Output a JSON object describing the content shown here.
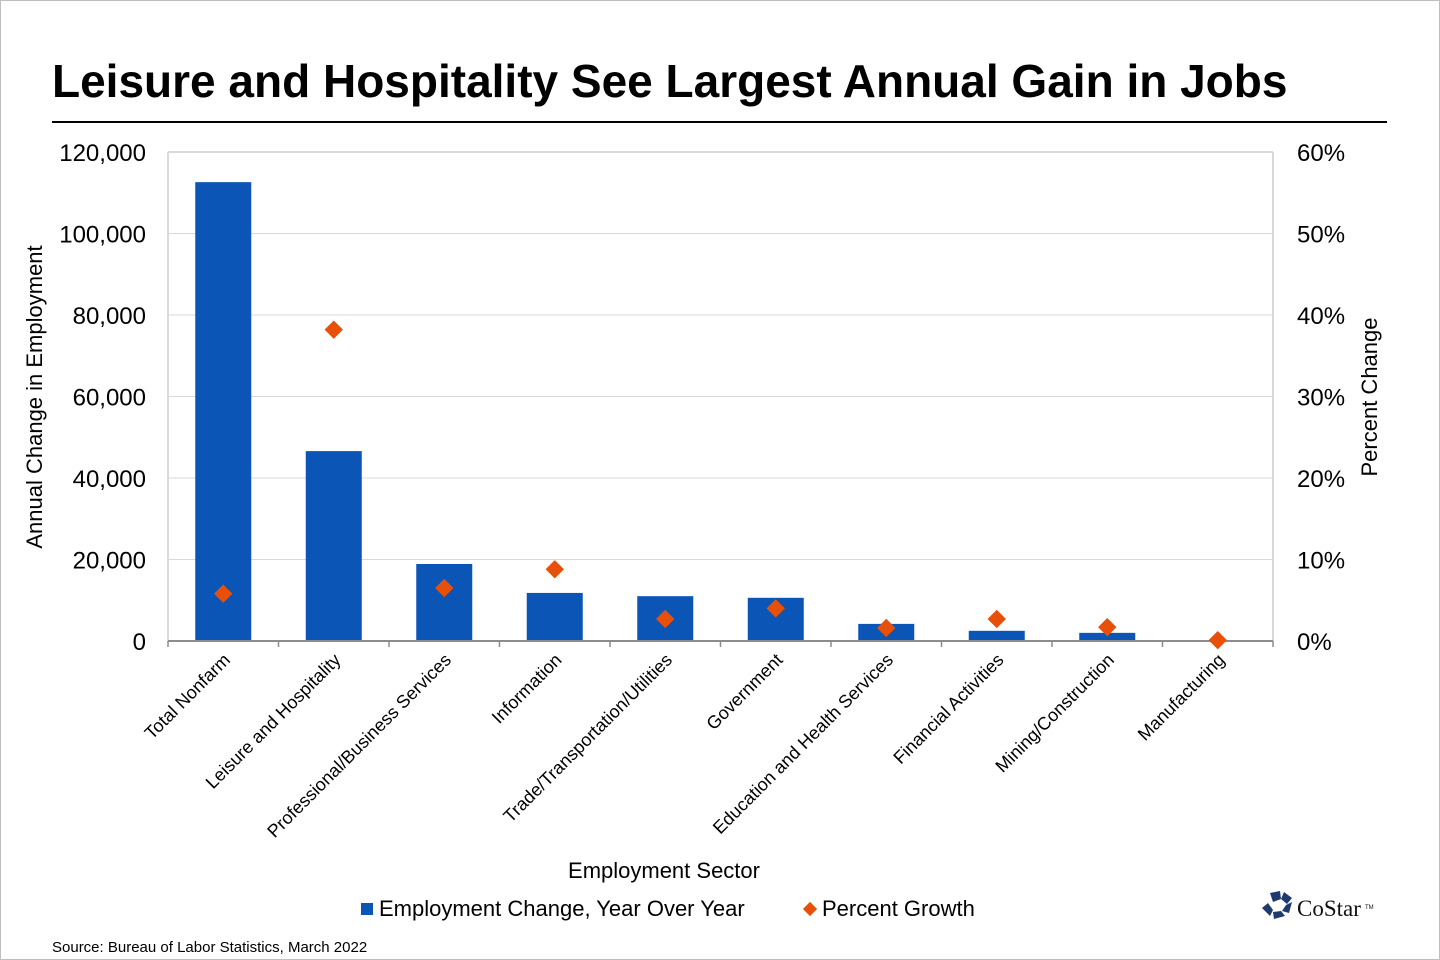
{
  "chart_data": {
    "type": "bar",
    "title": "Leisure and Hospitality See Largest Annual Gain in Jobs",
    "xlabel": "Employment Sector",
    "ylabel": "Annual Change in Employment",
    "y2label": "Percent Change",
    "ylim": [
      0,
      120000
    ],
    "y2lim": [
      0,
      60
    ],
    "yticks": [
      "0",
      "20,000",
      "40,000",
      "60,000",
      "80,000",
      "100,000",
      "120,000"
    ],
    "y2ticks": [
      "0%",
      "10%",
      "20%",
      "30%",
      "40%",
      "50%",
      "60%"
    ],
    "grid": true,
    "legend_position": "bottom",
    "categories": [
      "Total Nonfarm",
      "Leisure and Hospitality",
      "Professional/Business Services",
      "Information",
      "Trade/Transportation/Utilities",
      "Government",
      "Education and Health Services",
      "Financial Activities",
      "Mining/Construction",
      "Manufacturing"
    ],
    "series": [
      {
        "name": "Employment Change, Year Over Year",
        "type": "bar",
        "axis": "left",
        "color": "#0a55b5",
        "values": [
          112600,
          46600,
          18900,
          11800,
          11000,
          10600,
          4200,
          2500,
          2000,
          0
        ]
      },
      {
        "name": "Percent Growth",
        "type": "scatter",
        "marker": "diamond",
        "axis": "right",
        "color": "#e8500a",
        "values": [
          5.8,
          38.2,
          6.5,
          8.8,
          2.7,
          4.0,
          1.6,
          2.7,
          1.7,
          0.1
        ]
      }
    ]
  },
  "source": "Source: Bureau of Labor Statistics, March 2022",
  "logo": {
    "text": "CoStar",
    "tm": "TM",
    "color": "#1f3a6e"
  }
}
